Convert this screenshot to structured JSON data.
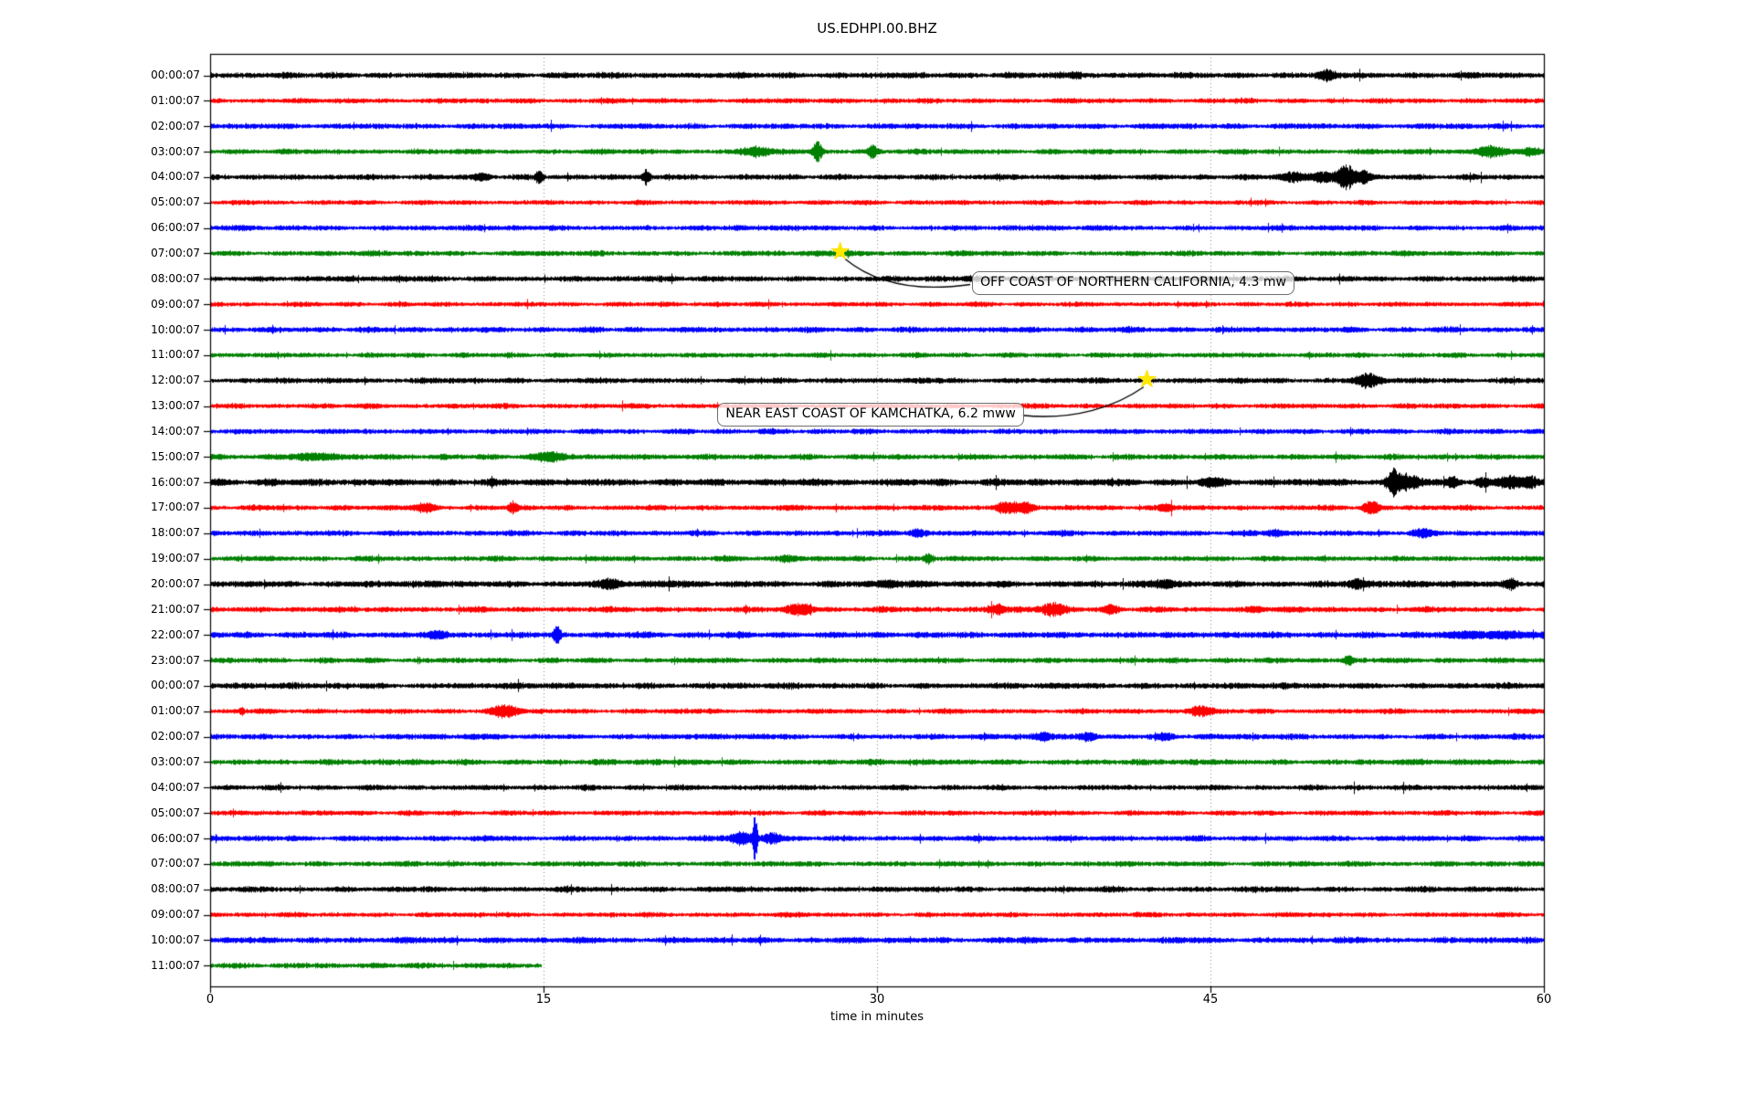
{
  "title": "US.EDHPI.00.BHZ",
  "icons": {
    "event_star": "★"
  },
  "chart_data": {
    "type": "line",
    "variant": "helicorder-dayplot",
    "title": "US.EDHPI.00.BHZ",
    "xlabel": "time in minutes",
    "x_range": [
      0,
      60
    ],
    "x_ticks": [
      0,
      15,
      30,
      45,
      60
    ],
    "grid_minutes": [
      15,
      30,
      45
    ],
    "grid_on": true,
    "trace_color_cycle": [
      "#000000",
      "#ff0000",
      "#0000ff",
      "#008000"
    ],
    "event_star_color": "#ffe800",
    "rows": [
      {
        "label": "00:00:07",
        "color": "#000000",
        "end": 60,
        "amp": 2.4,
        "bursts": [
          [
            39,
            0.15,
            3
          ],
          [
            50.2,
            0.25,
            5
          ]
        ]
      },
      {
        "label": "01:00:07",
        "color": "#ff0000",
        "end": 60,
        "amp": 2.0,
        "bursts": []
      },
      {
        "label": "02:00:07",
        "color": "#0000ff",
        "end": 60,
        "amp": 2.2,
        "bursts": []
      },
      {
        "label": "03:00:07",
        "color": "#008000",
        "end": 60,
        "amp": 2.1,
        "bursts": [
          [
            24.6,
            0.4,
            5
          ],
          [
            27.3,
            0.15,
            10
          ],
          [
            29.8,
            0.15,
            7
          ],
          [
            57.6,
            0.5,
            5
          ],
          [
            59.3,
            0.3,
            4
          ]
        ]
      },
      {
        "label": "04:00:07",
        "color": "#000000",
        "end": 60,
        "amp": 2.2,
        "bursts": [
          [
            12.2,
            0.3,
            3
          ],
          [
            14.8,
            0.12,
            7
          ],
          [
            19.6,
            0.12,
            8
          ],
          [
            48.7,
            0.5,
            4
          ],
          [
            50.1,
            0.3,
            5
          ],
          [
            51.1,
            0.3,
            13
          ],
          [
            51.9,
            0.25,
            6
          ]
        ]
      },
      {
        "label": "05:00:07",
        "color": "#ff0000",
        "end": 60,
        "amp": 1.9,
        "bursts": []
      },
      {
        "label": "06:00:07",
        "color": "#0000ff",
        "end": 60,
        "amp": 2.1,
        "bursts": []
      },
      {
        "label": "07:00:07",
        "color": "#008000",
        "end": 60,
        "amp": 2.1,
        "bursts": [
          [
            28.6,
            0.4,
            2
          ]
        ]
      },
      {
        "label": "08:00:07",
        "color": "#000000",
        "end": 60,
        "amp": 2.3,
        "bursts": []
      },
      {
        "label": "09:00:07",
        "color": "#ff0000",
        "end": 60,
        "amp": 1.9,
        "bursts": []
      },
      {
        "label": "10:00:07",
        "color": "#0000ff",
        "end": 60,
        "amp": 2.2,
        "bursts": []
      },
      {
        "label": "11:00:07",
        "color": "#008000",
        "end": 60,
        "amp": 2.0,
        "bursts": []
      },
      {
        "label": "12:00:07",
        "color": "#000000",
        "end": 60,
        "amp": 2.2,
        "bursts": [
          [
            52.1,
            0.4,
            6
          ]
        ]
      },
      {
        "label": "13:00:07",
        "color": "#ff0000",
        "end": 60,
        "amp": 2.0,
        "bursts": []
      },
      {
        "label": "14:00:07",
        "color": "#0000ff",
        "end": 60,
        "amp": 2.1,
        "bursts": []
      },
      {
        "label": "15:00:07",
        "color": "#008000",
        "end": 60,
        "amp": 2.2,
        "bursts": [
          [
            4.8,
            0.8,
            3
          ],
          [
            15.3,
            0.5,
            4
          ]
        ]
      },
      {
        "label": "16:00:07",
        "color": "#000000",
        "end": 60,
        "amp": 2.8,
        "bursts": [
          [
            45,
            0.3,
            3
          ],
          [
            53.2,
            0.2,
            12
          ],
          [
            53.9,
            0.4,
            7
          ],
          [
            55.9,
            0.2,
            5
          ],
          [
            57.2,
            0.2,
            4
          ],
          [
            58.6,
            0.5,
            5
          ],
          [
            59.4,
            0.2,
            4
          ]
        ]
      },
      {
        "label": "17:00:07",
        "color": "#ff0000",
        "end": 60,
        "amp": 2.1,
        "bursts": [
          [
            9.7,
            0.3,
            4
          ],
          [
            13.6,
            0.15,
            5
          ],
          [
            35.8,
            0.35,
            6
          ],
          [
            36.7,
            0.25,
            5
          ],
          [
            43,
            0.2,
            3
          ],
          [
            52.2,
            0.25,
            7
          ]
        ]
      },
      {
        "label": "18:00:07",
        "color": "#0000ff",
        "end": 60,
        "amp": 2.2,
        "bursts": [
          [
            31.8,
            0.25,
            4
          ],
          [
            47.9,
            0.3,
            3
          ],
          [
            54.5,
            0.3,
            3
          ]
        ]
      },
      {
        "label": "19:00:07",
        "color": "#008000",
        "end": 60,
        "amp": 2.1,
        "bursts": [
          [
            26,
            0.3,
            3
          ],
          [
            32.3,
            0.15,
            5
          ]
        ]
      },
      {
        "label": "20:00:07",
        "color": "#000000",
        "end": 60,
        "amp": 2.7,
        "bursts": [
          [
            18,
            0.35,
            4
          ],
          [
            30.5,
            0.3,
            3
          ],
          [
            43,
            0.3,
            3
          ],
          [
            51.5,
            0.3,
            4
          ],
          [
            58.5,
            0.2,
            5
          ]
        ]
      },
      {
        "label": "21:00:07",
        "color": "#ff0000",
        "end": 60,
        "amp": 2.2,
        "bursts": [
          [
            26.5,
            0.4,
            6
          ],
          [
            35.3,
            0.3,
            5
          ],
          [
            37.9,
            0.4,
            7
          ],
          [
            40.5,
            0.25,
            5
          ],
          [
            47,
            0.3,
            3
          ]
        ]
      },
      {
        "label": "22:00:07",
        "color": "#0000ff",
        "end": 60,
        "amp": 2.5,
        "bursts": [
          [
            10.2,
            0.3,
            3
          ],
          [
            15.6,
            0.1,
            12
          ],
          [
            58,
            2.0,
            2.5
          ]
        ]
      },
      {
        "label": "23:00:07",
        "color": "#008000",
        "end": 60,
        "amp": 2.1,
        "bursts": [
          [
            51.2,
            0.12,
            6
          ]
        ]
      },
      {
        "label": "00:00:07",
        "color": "#000000",
        "end": 60,
        "amp": 2.4,
        "bursts": []
      },
      {
        "label": "01:00:07",
        "color": "#ff0000",
        "end": 60,
        "amp": 2.0,
        "bursts": [
          [
            1.4,
            0.08,
            4
          ],
          [
            13.2,
            0.45,
            6
          ],
          [
            44.5,
            0.35,
            5
          ]
        ]
      },
      {
        "label": "02:00:07",
        "color": "#0000ff",
        "end": 60,
        "amp": 2.2,
        "bursts": [
          [
            37.5,
            0.3,
            4
          ],
          [
            39.5,
            0.25,
            4
          ],
          [
            43,
            0.25,
            3
          ]
        ]
      },
      {
        "label": "03:00:07",
        "color": "#008000",
        "end": 60,
        "amp": 2.3,
        "bursts": []
      },
      {
        "label": "04:00:07",
        "color": "#000000",
        "end": 60,
        "amp": 2.1,
        "bursts": []
      },
      {
        "label": "05:00:07",
        "color": "#ff0000",
        "end": 60,
        "amp": 2.0,
        "bursts": []
      },
      {
        "label": "06:00:07",
        "color": "#0000ff",
        "end": 60,
        "amp": 2.2,
        "bursts": [
          [
            23.9,
            0.4,
            6
          ],
          [
            24.5,
            0.07,
            25
          ],
          [
            25.3,
            0.3,
            5
          ]
        ]
      },
      {
        "label": "07:00:07",
        "color": "#008000",
        "end": 60,
        "amp": 2.1,
        "bursts": []
      },
      {
        "label": "08:00:07",
        "color": "#000000",
        "end": 60,
        "amp": 2.2,
        "bursts": []
      },
      {
        "label": "09:00:07",
        "color": "#ff0000",
        "end": 60,
        "amp": 1.9,
        "bursts": []
      },
      {
        "label": "10:00:07",
        "color": "#0000ff",
        "end": 60,
        "amp": 2.4,
        "bursts": []
      },
      {
        "label": "11:00:07",
        "color": "#008000",
        "end": 14.9,
        "amp": 2.2,
        "bursts": []
      }
    ],
    "events": [
      {
        "label": "OFF COAST OF NORTHERN CALIFORNIA, 4.3 mw",
        "row": 7,
        "minute": 28.4
      },
      {
        "label": "NEAR EAST COAST OF KAMCHATKA, 6.2 mww",
        "row": 12,
        "minute": 42.2
      }
    ]
  }
}
